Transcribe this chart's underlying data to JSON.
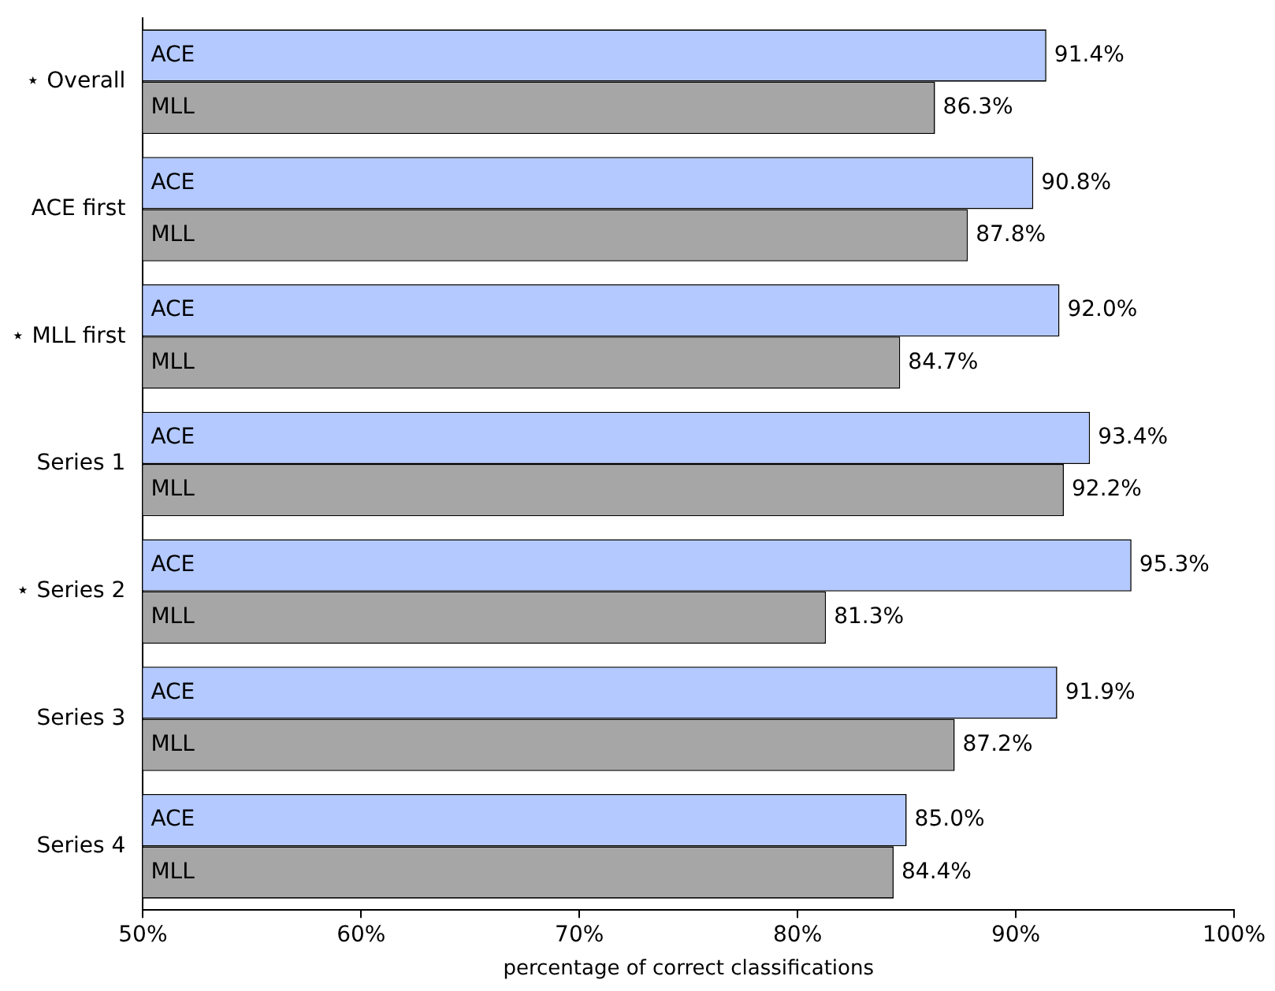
{
  "chart_data": {
    "type": "bar",
    "orientation": "horizontal",
    "xlabel": "percentage of correct classifications",
    "categories": [
      "⋆ Overall",
      "ACE first",
      "⋆ MLL first",
      "Series 1",
      "⋆ Series 2",
      "Series 3",
      "Series 4"
    ],
    "series": [
      {
        "name": "ACE",
        "color": "#b3c9ff",
        "values": [
          91.4,
          90.8,
          92.0,
          93.4,
          95.3,
          91.9,
          85.0
        ],
        "value_labels": [
          "91.4%",
          "90.8%",
          "92.0%",
          "93.4%",
          "95.3%",
          "91.9%",
          "85.0%"
        ]
      },
      {
        "name": "MLL",
        "color": "#a6a6a6",
        "values": [
          86.3,
          87.8,
          84.7,
          92.2,
          81.3,
          87.2,
          84.4
        ],
        "value_labels": [
          "86.3%",
          "87.8%",
          "84.7%",
          "92.2%",
          "81.3%",
          "87.2%",
          "84.4%"
        ]
      }
    ],
    "xlim": [
      50,
      100
    ],
    "xticks": [
      {
        "value": 50,
        "label": "50%"
      },
      {
        "value": 60,
        "label": "60%"
      },
      {
        "value": 70,
        "label": "70%"
      },
      {
        "value": 80,
        "label": "80%"
      },
      {
        "value": 90,
        "label": "90%"
      },
      {
        "value": 100,
        "label": "100%"
      }
    ],
    "legend": false
  }
}
